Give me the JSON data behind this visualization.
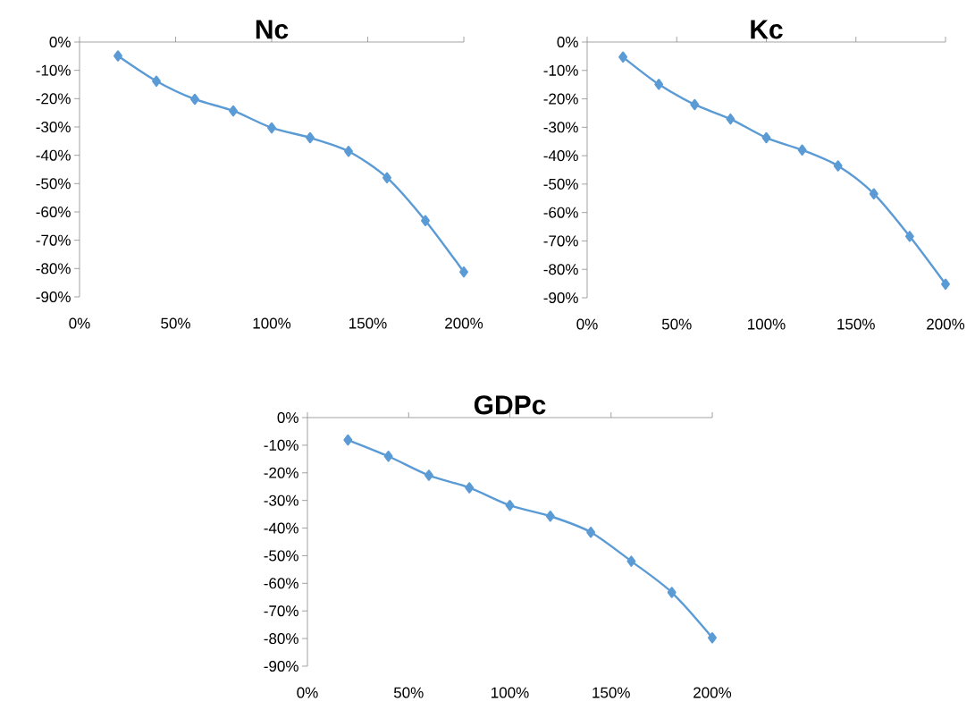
{
  "chart_data": [
    {
      "type": "line",
      "title": "Nc",
      "x": [
        20,
        40,
        60,
        80,
        100,
        120,
        140,
        160,
        180,
        200
      ],
      "marker": "diamond",
      "line_style": "solid",
      "series": [
        {
          "color": "#5b9bd5",
          "values": [
            -4.9,
            -13.8,
            -20.2,
            -24.3,
            -30.3,
            -33.8,
            -38.6,
            -47.9,
            -63.1,
            -81.2
          ]
        }
      ],
      "xlim": [
        0,
        200
      ],
      "ylim": [
        -90,
        0
      ],
      "xticks": [
        {
          "value": 0,
          "label": "0%"
        },
        {
          "value": 50,
          "label": "50%"
        },
        {
          "value": 100,
          "label": "100%"
        },
        {
          "value": 150,
          "label": "150%"
        },
        {
          "value": 200,
          "label": "200%"
        }
      ],
      "yticks": [
        {
          "value": 0,
          "label": "0%"
        },
        {
          "value": -10,
          "label": "-10%"
        },
        {
          "value": -20,
          "label": "-20%"
        },
        {
          "value": -30,
          "label": "-30%"
        },
        {
          "value": -40,
          "label": "-40%"
        },
        {
          "value": -50,
          "label": "-50%"
        },
        {
          "value": -60,
          "label": "-60%"
        },
        {
          "value": -70,
          "label": "-70%"
        },
        {
          "value": -80,
          "label": "-80%"
        },
        {
          "value": -90,
          "label": "-90%"
        }
      ]
    },
    {
      "type": "line",
      "title": "Kc",
      "x": [
        20,
        40,
        60,
        80,
        100,
        120,
        140,
        160,
        180,
        200
      ],
      "marker": "diamond",
      "line_style": "solid",
      "series": [
        {
          "color": "#5b9bd5",
          "values": [
            -5.3,
            -14.9,
            -22.0,
            -27.1,
            -33.7,
            -38.0,
            -43.6,
            -53.4,
            -68.4,
            -85.2
          ]
        }
      ],
      "xlim": [
        0,
        200
      ],
      "ylim": [
        -90,
        0
      ],
      "xticks": [
        {
          "value": 0,
          "label": "0%"
        },
        {
          "value": 50,
          "label": "50%"
        },
        {
          "value": 100,
          "label": "100%"
        },
        {
          "value": 150,
          "label": "150%"
        },
        {
          "value": 200,
          "label": "200%"
        }
      ],
      "yticks": [
        {
          "value": 0,
          "label": "0%"
        },
        {
          "value": -10,
          "label": "-10%"
        },
        {
          "value": -20,
          "label": "-20%"
        },
        {
          "value": -30,
          "label": "-30%"
        },
        {
          "value": -40,
          "label": "-40%"
        },
        {
          "value": -50,
          "label": "-50%"
        },
        {
          "value": -60,
          "label": "-60%"
        },
        {
          "value": -70,
          "label": "-70%"
        },
        {
          "value": -80,
          "label": "-80%"
        },
        {
          "value": -90,
          "label": "-90%"
        }
      ]
    },
    {
      "type": "line",
      "title": "GDPc",
      "x": [
        20,
        40,
        60,
        80,
        100,
        120,
        140,
        160,
        180,
        200
      ],
      "marker": "diamond",
      "line_style": "solid",
      "series": [
        {
          "color": "#5b9bd5",
          "values": [
            -8.1,
            -14.0,
            -20.9,
            -25.4,
            -31.8,
            -35.7,
            -41.5,
            -52.0,
            -63.3,
            -79.7
          ]
        }
      ],
      "xlim": [
        0,
        200
      ],
      "ylim": [
        -90,
        0
      ],
      "xticks": [
        {
          "value": 0,
          "label": "0%"
        },
        {
          "value": 50,
          "label": "50%"
        },
        {
          "value": 100,
          "label": "100%"
        },
        {
          "value": 150,
          "label": "150%"
        },
        {
          "value": 200,
          "label": "200%"
        }
      ],
      "yticks": [
        {
          "value": 0,
          "label": "0%"
        },
        {
          "value": -10,
          "label": "-10%"
        },
        {
          "value": -20,
          "label": "-20%"
        },
        {
          "value": -30,
          "label": "-30%"
        },
        {
          "value": -40,
          "label": "-40%"
        },
        {
          "value": -50,
          "label": "-50%"
        },
        {
          "value": -60,
          "label": "-60%"
        },
        {
          "value": -70,
          "label": "-70%"
        },
        {
          "value": -80,
          "label": "-80%"
        },
        {
          "value": -90,
          "label": "-90%"
        }
      ]
    }
  ]
}
